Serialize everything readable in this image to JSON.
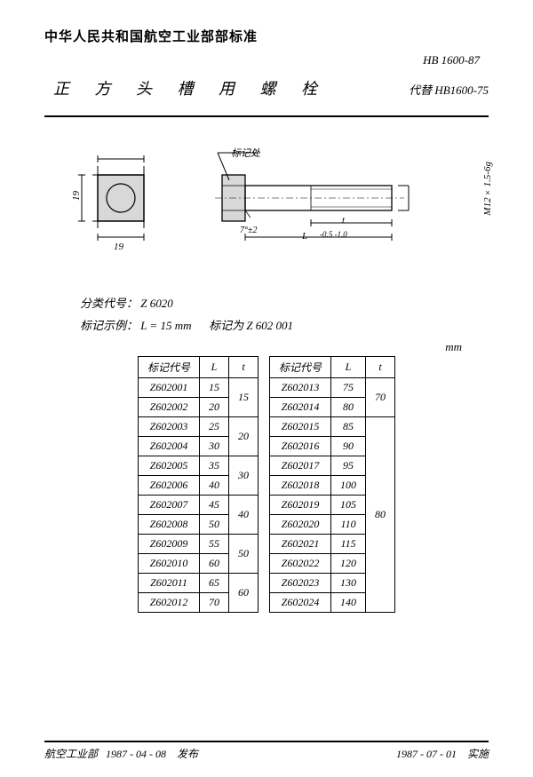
{
  "header": {
    "org": "中华人民共和国航空工业部部标准",
    "code": "HB 1600-87",
    "title": "正 方 头 槽 用 螺 栓",
    "replaces_label": "代替",
    "replaces_code": "HB1600-75"
  },
  "diagram": {
    "callout": "标记处",
    "dim_head_h": "19",
    "dim_head_w": "19",
    "dim_t": "t",
    "dim_L": "L",
    "dim_L_tol": "-0.5\n-1.0",
    "dim_chamfer": "7°±2",
    "thread": "M12×1.5-6g",
    "colors": {
      "line": "#000000",
      "fill": "#d0d0d0"
    }
  },
  "meta": {
    "class_label": "分类代号：",
    "class_code": "Z 6020",
    "example_label": "标记示例：",
    "example_value": "L = 15 mm",
    "example_mark": "标记为 Z 602 001",
    "unit": "mm"
  },
  "table": {
    "headers": [
      "标记代号",
      "L",
      "t"
    ],
    "left_rows": [
      {
        "code": "Z602001",
        "L": "15",
        "t": "15",
        "t_span": 2
      },
      {
        "code": "Z602002",
        "L": "20"
      },
      {
        "code": "Z602003",
        "L": "25",
        "t": "20",
        "t_span": 2
      },
      {
        "code": "Z602004",
        "L": "30"
      },
      {
        "code": "Z602005",
        "L": "35",
        "t": "30",
        "t_span": 2
      },
      {
        "code": "Z602006",
        "L": "40"
      },
      {
        "code": "Z602007",
        "L": "45",
        "t": "40",
        "t_span": 2
      },
      {
        "code": "Z602008",
        "L": "50"
      },
      {
        "code": "Z602009",
        "L": "55",
        "t": "50",
        "t_span": 2
      },
      {
        "code": "Z602010",
        "L": "60"
      },
      {
        "code": "Z602011",
        "L": "65",
        "t": "60",
        "t_span": 2
      },
      {
        "code": "Z602012",
        "L": "70"
      }
    ],
    "right_rows": [
      {
        "code": "Z602013",
        "L": "75",
        "t": "70",
        "t_span": 2
      },
      {
        "code": "Z602014",
        "L": "80"
      },
      {
        "code": "Z602015",
        "L": "85",
        "t": "80",
        "t_span": 10
      },
      {
        "code": "Z602016",
        "L": "90"
      },
      {
        "code": "Z602017",
        "L": "95"
      },
      {
        "code": "Z602018",
        "L": "100"
      },
      {
        "code": "Z602019",
        "L": "105"
      },
      {
        "code": "Z602020",
        "L": "110"
      },
      {
        "code": "Z602021",
        "L": "115"
      },
      {
        "code": "Z602022",
        "L": "120"
      },
      {
        "code": "Z602023",
        "L": "130"
      },
      {
        "code": "Z602024",
        "L": "140"
      }
    ]
  },
  "footer": {
    "issuer": "航空工业部",
    "issue_date": "1987 - 04 - 08",
    "issue_word": "发布",
    "impl_date": "1987 - 07 - 01",
    "impl_word": "实施"
  }
}
